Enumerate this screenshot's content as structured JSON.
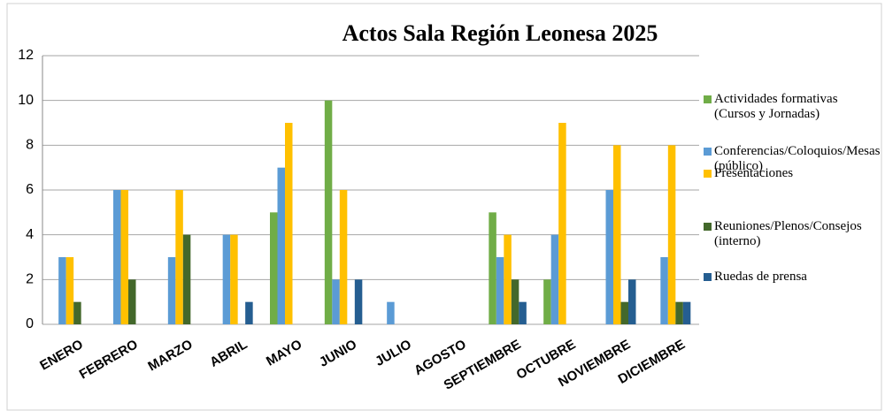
{
  "chart_data": {
    "type": "bar",
    "title": "Actos Sala Región Leonesa 2025",
    "categories": [
      "ENERO",
      "FEBRERO",
      "MARZO",
      "ABRIL",
      "MAYO",
      "JUNIO",
      "JULIO",
      "AGOSTO",
      "SEPTIEMBRE",
      "OCTUBRE",
      "NOVIEMBRE",
      "DICIEMBRE"
    ],
    "series": [
      {
        "name": "Actividades formativas (Cursos y Jornadas)",
        "color": "#70ad47",
        "values": [
          0,
          0,
          0,
          0,
          5,
          10,
          0,
          0,
          5,
          2,
          0,
          0
        ]
      },
      {
        "name": "Conferencias/Coloquios/Mesas (público)",
        "color": "#5b9bd5",
        "values": [
          3,
          6,
          3,
          4,
          7,
          2,
          1,
          0,
          3,
          4,
          6,
          3
        ]
      },
      {
        "name": "Presentaciones",
        "color": "#ffc000",
        "values": [
          3,
          6,
          6,
          4,
          9,
          6,
          0,
          0,
          4,
          9,
          8,
          8
        ]
      },
      {
        "name": "Reuniones/Plenos/Consejos (interno)",
        "color": "#43682b",
        "values": [
          1,
          2,
          4,
          0,
          0,
          0,
          0,
          0,
          2,
          0,
          1,
          1
        ]
      },
      {
        "name": "Ruedas de prensa",
        "color": "#255e91",
        "values": [
          0,
          0,
          0,
          1,
          0,
          2,
          0,
          0,
          1,
          0,
          2,
          1
        ]
      }
    ],
    "ylim": [
      0,
      12
    ],
    "yticks": [
      0,
      2,
      4,
      6,
      8,
      10,
      12
    ],
    "grid": true
  }
}
